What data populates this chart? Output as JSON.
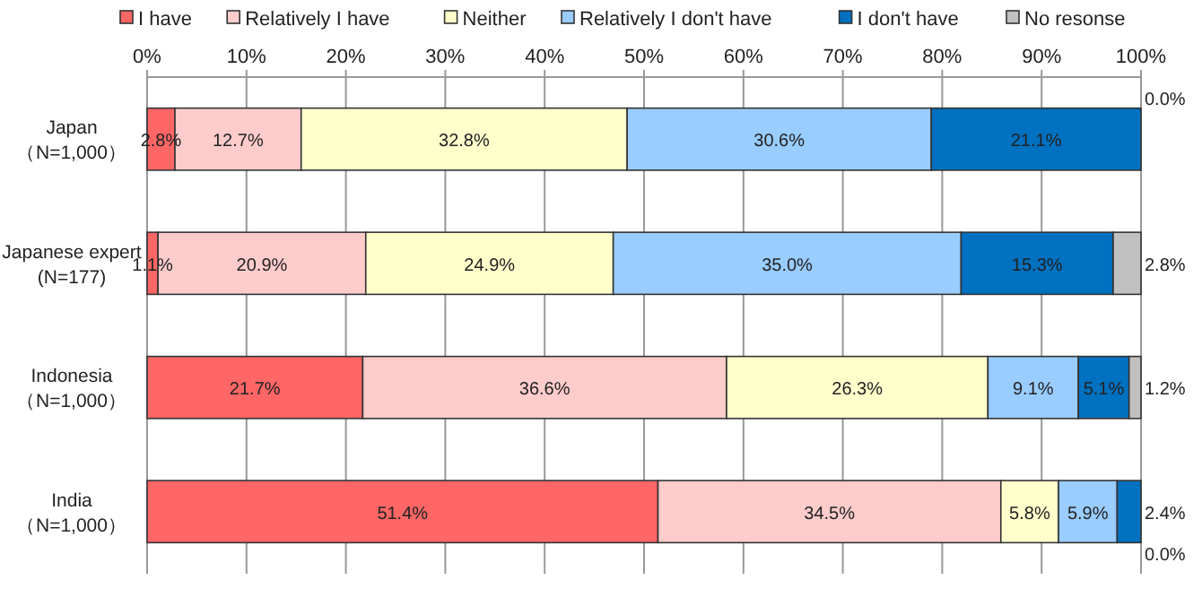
{
  "chart_data": {
    "type": "bar",
    "orientation": "horizontal",
    "stacked": true,
    "categories": [
      "Japan\n（N=1,000）",
      "Japanese expert\n(N=177)",
      "Indonesia\n（N=1,000）",
      "India\n（N=1,000）"
    ],
    "series": [
      {
        "name": "I have",
        "color": "#ff6666",
        "values": [
          2.8,
          1.1,
          21.7,
          51.4
        ],
        "value_labels": [
          "2.8%",
          "1.1%",
          "21.7%",
          "51.4%"
        ]
      },
      {
        "name": "Relatively I have",
        "color": "#ffcccc",
        "values": [
          12.7,
          20.9,
          36.6,
          34.5
        ],
        "value_labels": [
          "12.7%",
          "20.9%",
          "36.6%",
          "34.5%"
        ]
      },
      {
        "name": "Neither",
        "color": "#ffffcc",
        "values": [
          32.8,
          24.9,
          26.3,
          5.8
        ],
        "value_labels": [
          "32.8%",
          "24.9%",
          "26.3%",
          "5.8%"
        ]
      },
      {
        "name": "Relatively I don't have",
        "color": "#99ccff",
        "values": [
          30.6,
          35.0,
          9.1,
          5.9
        ],
        "value_labels": [
          "30.6%",
          "35.0%",
          "9.1%",
          "5.9%"
        ]
      },
      {
        "name": "I don't have",
        "color": "#0070c0",
        "values": [
          21.1,
          15.3,
          5.1,
          2.4
        ],
        "value_labels": [
          "21.1%",
          "15.3%",
          "5.1%",
          "2.4%"
        ]
      },
      {
        "name": "No resonse",
        "color": "#c0c0c0",
        "values": [
          0.0,
          2.8,
          1.2,
          0.0
        ],
        "value_labels": [
          "0.0%",
          "2.8%",
          "1.2%",
          "0.0%"
        ]
      }
    ],
    "xlim": [
      0,
      100
    ],
    "xticks": [
      {
        "value": 0,
        "label": "0%"
      },
      {
        "value": 10,
        "label": "10%"
      },
      {
        "value": 20,
        "label": "20%"
      },
      {
        "value": 30,
        "label": "30%"
      },
      {
        "value": 40,
        "label": "40%"
      },
      {
        "value": 50,
        "label": "50%"
      },
      {
        "value": 60,
        "label": "60%"
      },
      {
        "value": 70,
        "label": "70%"
      },
      {
        "value": 80,
        "label": "80%"
      },
      {
        "value": 90,
        "label": "90%"
      },
      {
        "value": 100,
        "label": "100%"
      }
    ],
    "grid": "x",
    "legend": "top"
  }
}
